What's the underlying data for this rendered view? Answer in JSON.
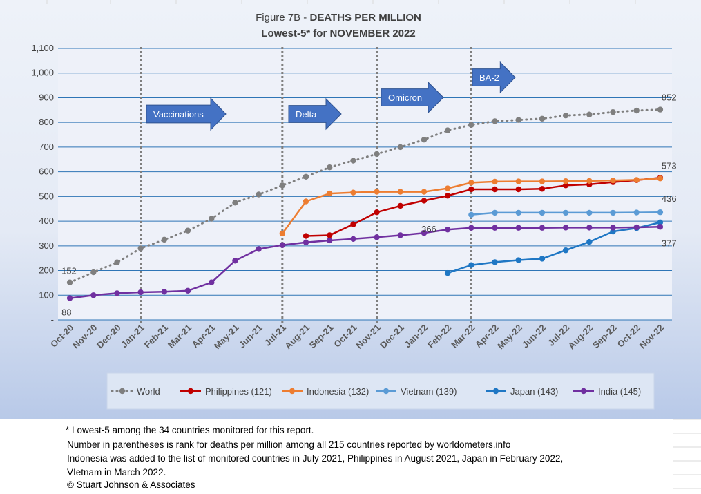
{
  "title": {
    "prefix": "Figure 7B - ",
    "bold": "DEATHS PER MILLION",
    "line2": "Lowest-5* for NOVEMBER 2022"
  },
  "notes": [
    "* Lowest-5 among the 34 countries monitored for this report.",
    "Number in parentheses is rank for deaths per million among all 215 countries reported by worldometers.info",
    "Indonesia was added to the list of monitored countries in  July 2021, Philippines in August 2021, Japan in February 2022,",
    "VIetnam in March 2022.",
    "© Stuart Johnson & Associates"
  ],
  "chart_data": {
    "type": "line",
    "categories": [
      "Oct-20",
      "Nov-20",
      "Dec-20",
      "Jan-21",
      "Feb-21",
      "Mar-21",
      "Apr-21",
      "May-21",
      "Jun-21",
      "Jul-21",
      "Aug-21",
      "Sep-21",
      "Oct-21",
      "Nov-21",
      "Dec-21",
      "Jan-22",
      "Feb-22",
      "Mar-22",
      "Apr-22",
      "May-22",
      "Jun-22",
      "Jul-22",
      "Aug-22",
      "Sep-22",
      "Oct-22",
      "Nov-22"
    ],
    "ylim": [
      0,
      1100
    ],
    "yticks": [
      0,
      100,
      200,
      300,
      400,
      500,
      600,
      700,
      800,
      900,
      1000,
      1100
    ],
    "ytick_labels": [
      "-",
      "100",
      "200",
      "300",
      "400",
      "500",
      "600",
      "700",
      "800",
      "900",
      "1,000",
      "1,100"
    ],
    "grid": true,
    "legend_position": "bottom",
    "series": [
      {
        "name": "World",
        "color": "#7f7f7f",
        "style": "dotted",
        "values": [
          152,
          193,
          233,
          290,
          325,
          362,
          410,
          475,
          508,
          545,
          580,
          618,
          645,
          672,
          700,
          730,
          768,
          790,
          805,
          810,
          815,
          828,
          832,
          842,
          848,
          852
        ]
      },
      {
        "name": "Philippines (121)",
        "color": "#c00000",
        "style": "solid",
        "values": [
          null,
          null,
          null,
          null,
          null,
          null,
          null,
          null,
          null,
          null,
          340,
          343,
          387,
          436,
          462,
          483,
          503,
          529,
          529,
          529,
          531,
          545,
          549,
          558,
          566,
          576
        ]
      },
      {
        "name": "Indonesia (132)",
        "color": "#ed7d31",
        "style": "solid",
        "values": [
          null,
          null,
          null,
          null,
          null,
          null,
          null,
          null,
          null,
          350,
          480,
          512,
          516,
          519,
          519,
          519,
          533,
          556,
          560,
          561,
          561,
          562,
          563,
          565,
          567,
          573
        ]
      },
      {
        "name": "Vietnam (139)",
        "color": "#5b9bd5",
        "style": "solid",
        "values": [
          null,
          null,
          null,
          null,
          null,
          null,
          null,
          null,
          null,
          null,
          null,
          null,
          null,
          null,
          null,
          null,
          null,
          426,
          434,
          434,
          434,
          434,
          434,
          434,
          435,
          436
        ]
      },
      {
        "name": "Japan (143)",
        "color": "#1f77c4",
        "style": "solid",
        "values": [
          null,
          null,
          null,
          null,
          null,
          null,
          null,
          null,
          null,
          null,
          null,
          null,
          null,
          null,
          null,
          null,
          190,
          222,
          234,
          242,
          248,
          282,
          316,
          358,
          372,
          395
        ]
      },
      {
        "name": "India (145)",
        "color": "#7030a0",
        "style": "solid",
        "values": [
          88,
          100,
          108,
          112,
          114,
          118,
          152,
          240,
          287,
          303,
          314,
          322,
          328,
          335,
          343,
          352,
          366,
          373,
          373,
          373,
          373,
          374,
          374,
          374,
          375,
          377
        ]
      }
    ],
    "data_labels": [
      {
        "text": "152",
        "category": "Oct-20",
        "value": 152
      },
      {
        "text": "88",
        "category": "Oct-20",
        "value": 88
      },
      {
        "text": "852",
        "category": "Nov-22",
        "value": 852
      },
      {
        "text": "573",
        "category": "Nov-22",
        "value": 573
      },
      {
        "text": "436",
        "category": "Nov-22",
        "value": 436
      },
      {
        "text": "377",
        "category": "Nov-22",
        "value": 377
      },
      {
        "text": "366",
        "category": "Feb-22",
        "value": 366
      }
    ],
    "annotations": [
      {
        "text": "Vaccinations",
        "category": "Jan-21"
      },
      {
        "text": "Delta",
        "category": "Jul-21"
      },
      {
        "text": "Omicron",
        "category": "Nov-21"
      },
      {
        "text": "BA-2",
        "category": "Mar-22"
      }
    ]
  }
}
